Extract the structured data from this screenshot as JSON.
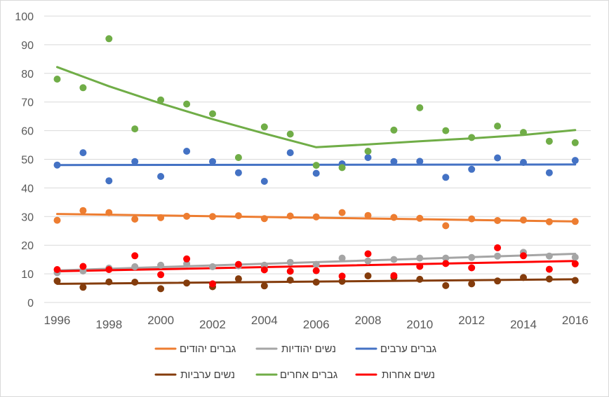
{
  "chart_data": {
    "type": "scatter",
    "title": "",
    "xlabel": "",
    "ylabel": "",
    "xlim": [
      1996,
      2016
    ],
    "ylim": [
      0,
      100
    ],
    "y_ticks": [
      0,
      10,
      20,
      30,
      40,
      50,
      60,
      70,
      80,
      90,
      100
    ],
    "x_ticks": [
      1996,
      1998,
      2000,
      2002,
      2004,
      2006,
      2008,
      2010,
      2012,
      2014,
      2016
    ],
    "grid": "horizontal",
    "legend_position": "bottom",
    "series": [
      {
        "name": "גברים יהודים",
        "color": "#ED7D31",
        "x": [
          1996,
          1997,
          1998,
          1999,
          2000,
          2001,
          2002,
          2003,
          2004,
          2005,
          2006,
          2007,
          2008,
          2009,
          2010,
          2011,
          2012,
          2013,
          2014,
          2015,
          2016
        ],
        "values": [
          28.7,
          32.1,
          31.4,
          29.1,
          29.6,
          30.1,
          30.0,
          30.3,
          29.3,
          30.2,
          29.9,
          31.4,
          30.4,
          29.7,
          29.4,
          26.8,
          29.2,
          28.6,
          28.8,
          28.2,
          28.3
        ],
        "trend": [
          [
            1996,
            30.9
          ],
          [
            2016,
            28.3
          ]
        ]
      },
      {
        "name": "נשים יהודיות",
        "color": "#A5A5A5",
        "x": [
          1996,
          1997,
          1998,
          1999,
          2000,
          2001,
          2002,
          2003,
          2004,
          2005,
          2006,
          2007,
          2008,
          2009,
          2010,
          2011,
          2012,
          2013,
          2014,
          2015,
          2016
        ],
        "values": [
          10.4,
          11.0,
          12.0,
          12.5,
          13.0,
          13.5,
          12.5,
          12.8,
          13.0,
          14.0,
          13.3,
          15.5,
          14.5,
          15.0,
          15.5,
          15.5,
          15.7,
          16.2,
          17.5,
          16.2,
          15.8
        ],
        "trend": [
          [
            1996,
            11.2
          ],
          [
            2016,
            17.0
          ]
        ]
      },
      {
        "name": "גברים ערבים",
        "color": "#4472C4",
        "x": [
          1996,
          1997,
          1998,
          1999,
          2000,
          2001,
          2002,
          2003,
          2004,
          2005,
          2006,
          2007,
          2008,
          2009,
          2010,
          2011,
          2012,
          2013,
          2014,
          2015,
          2016
        ],
        "values": [
          48.0,
          52.3,
          42.5,
          49.2,
          44.0,
          52.8,
          49.2,
          45.3,
          42.3,
          52.3,
          45.1,
          48.4,
          50.6,
          49.2,
          49.3,
          43.7,
          46.5,
          50.5,
          48.9,
          45.3,
          49.6
        ],
        "trend": [
          [
            1996,
            48.0
          ],
          [
            2016,
            48.2
          ]
        ]
      },
      {
        "name": "נשים ערביות",
        "color": "#843C0C",
        "x": [
          1996,
          1997,
          1998,
          1999,
          2000,
          2001,
          2002,
          2003,
          2004,
          2005,
          2006,
          2007,
          2008,
          2009,
          2010,
          2011,
          2012,
          2013,
          2014,
          2015,
          2016
        ],
        "values": [
          7.5,
          5.3,
          7.2,
          7.1,
          4.8,
          6.8,
          5.5,
          8.3,
          5.8,
          7.8,
          7.1,
          7.4,
          9.3,
          8.8,
          8.1,
          5.9,
          6.5,
          7.5,
          8.7,
          8.2,
          7.7
        ],
        "trend": [
          [
            1996,
            6.5
          ],
          [
            2016,
            8.1
          ]
        ]
      },
      {
        "name": "גברים אחרים",
        "color": "#70AD47",
        "x": [
          1996,
          1997,
          1998,
          1999,
          2000,
          2001,
          2002,
          2003,
          2004,
          2005,
          2006,
          2007,
          2008,
          2009,
          2010,
          2011,
          2012,
          2013,
          2014,
          2015,
          2016
        ],
        "values": [
          78.0,
          75.0,
          92.1,
          60.6,
          70.7,
          69.3,
          65.9,
          50.6,
          61.3,
          58.8,
          47.9,
          47.1,
          52.8,
          60.2,
          68.0,
          60.0,
          57.6,
          61.6,
          59.4,
          56.3,
          55.8
        ],
        "trend": [
          [
            1996,
            82.2
          ],
          [
            1998,
            75.5
          ],
          [
            2000,
            69.5
          ],
          [
            2002,
            64.0
          ],
          [
            2004,
            59.0
          ],
          [
            2006,
            54.2
          ],
          [
            2008,
            55.2
          ],
          [
            2010,
            56.3
          ],
          [
            2012,
            57.3
          ],
          [
            2014,
            58.5
          ],
          [
            2016,
            60.2
          ]
        ]
      },
      {
        "name": "נשים אחרות",
        "color": "#FF0000",
        "x": [
          1996,
          1997,
          1998,
          1999,
          2000,
          2001,
          2002,
          2003,
          2004,
          2005,
          2006,
          2007,
          2008,
          2009,
          2010,
          2011,
          2012,
          2013,
          2014,
          2015,
          2016
        ],
        "values": [
          11.5,
          12.6,
          11.5,
          16.3,
          9.7,
          15.2,
          6.5,
          13.3,
          11.4,
          10.9,
          11.1,
          9.2,
          17.0,
          9.4,
          12.6,
          13.6,
          12.1,
          19.1,
          16.3,
          11.6,
          13.5
        ],
        "trend": [
          [
            1996,
            10.9
          ],
          [
            2016,
            14.5
          ]
        ]
      }
    ]
  }
}
